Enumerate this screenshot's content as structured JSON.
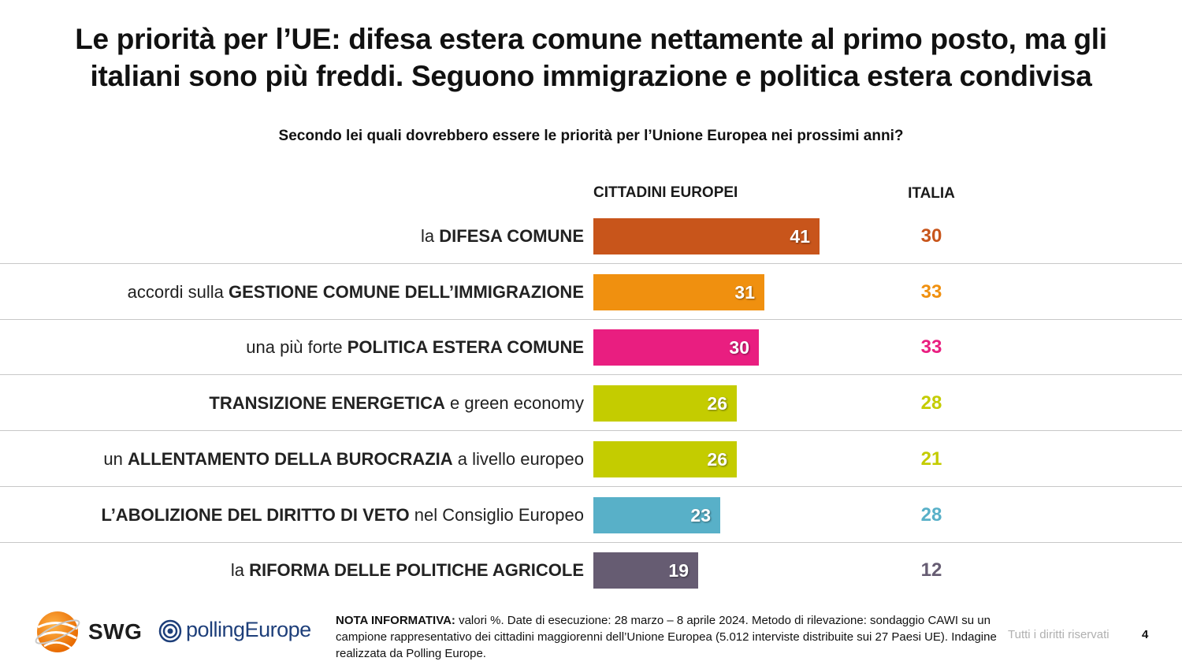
{
  "title": {
    "line1": "Le priorità per l’UE: difesa estera comune nettamente al primo posto, ma gli",
    "line2": "italiani sono più freddi. Seguono immigrazione e politica estera condivisa"
  },
  "question": "Secondo lei quali dovrebbero essere le priorità per l’Unione Europea nei prossimi anni?",
  "chart_data": {
    "type": "bar",
    "orientation": "horizontal",
    "column_headers": {
      "eu": "CITTADINI EUROPEI",
      "italy": "ITALIA"
    },
    "categories": [
      {
        "pre": "la ",
        "bold": "DIFESA COMUNE",
        "post": ""
      },
      {
        "pre": "accordi sulla ",
        "bold": "GESTIONE COMUNE DELL’IMMIGRAZIONE",
        "post": ""
      },
      {
        "pre": "una più forte ",
        "bold": "POLITICA ESTERA COMUNE",
        "post": ""
      },
      {
        "pre": "",
        "bold": "TRANSIZIONE ENERGETICA",
        "post": " e green economy"
      },
      {
        "pre": "un ",
        "bold": "ALLENTAMENTO DELLA BUROCRAZIA",
        "post": " a livello europeo"
      },
      {
        "pre": "",
        "bold": "L’ABOLIZIONE DEL DIRITTO DI VETO",
        "post": " nel Consiglio Europeo"
      },
      {
        "pre": "la ",
        "bold": "RIFORMA DELLE POLITICHE AGRICOLE",
        "post": ""
      }
    ],
    "series": [
      {
        "values": [
          41,
          31,
          30,
          26,
          26,
          23,
          19
        ]
      },
      {
        "values": [
          30,
          33,
          33,
          28,
          21,
          28,
          12
        ]
      }
    ],
    "colors": [
      "#c8551b",
      "#f0900f",
      "#e91e80",
      "#c4cc00",
      "#c4cc00",
      "#58b0c8",
      "#665c72"
    ],
    "xlim": [
      0,
      100
    ],
    "grid": false,
    "units": "%"
  },
  "footer": {
    "note_label": "NOTA INFORMATIVA:",
    "note_text": " valori %. Date di esecuzione: 28 marzo – 8 aprile 2024. Metodo di rilevazione: sondaggio CAWI su un campione rappresentativo dei cittadini maggiorenni dell’Unione Europea (5.012 interviste distribuite sui 27 Paesi UE). Indagine realizzata da Polling Europe.",
    "rights": "Tutti i diritti riservati",
    "page": "4",
    "logo_swg": "SWG",
    "logo_pe": "pollingEurope"
  }
}
